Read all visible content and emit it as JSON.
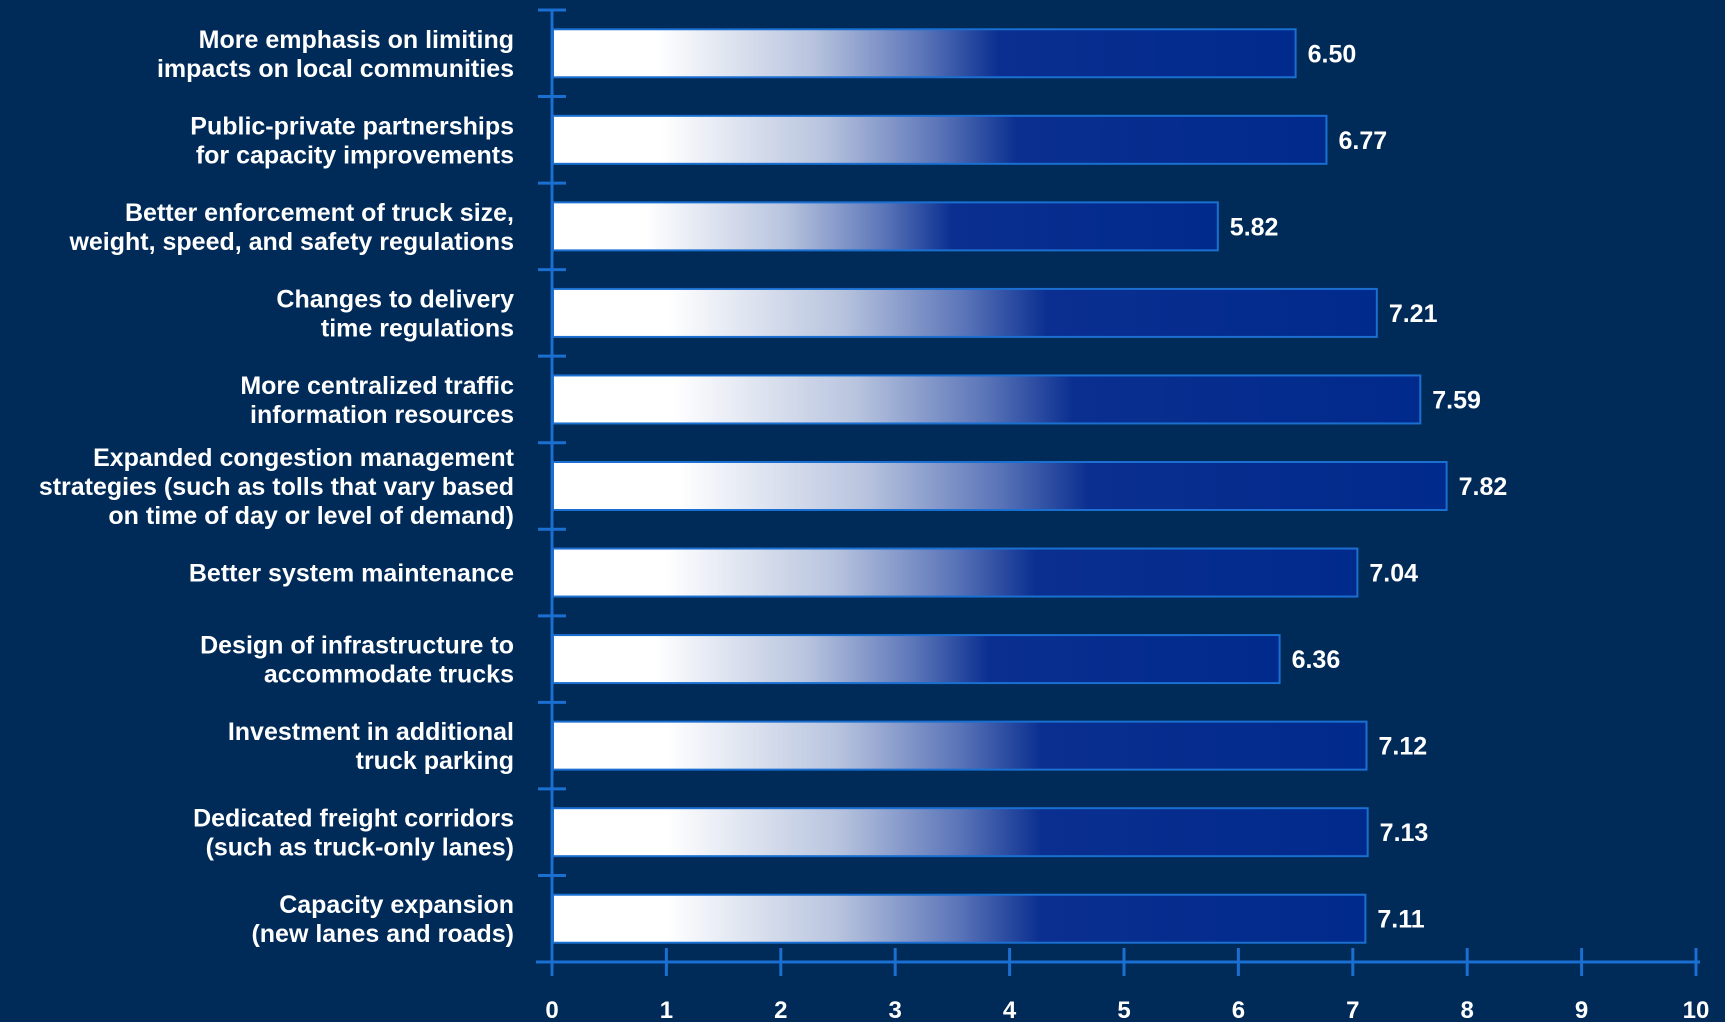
{
  "chart_data": {
    "type": "bar",
    "orientation": "horizontal",
    "categories": [
      "More emphasis on limiting\nimpacts on local communities",
      "Public-private partnerships\nfor capacity improvements",
      "Better enforcement of truck size,\nweight, speed, and safety regulations",
      "Changes to delivery\ntime regulations",
      "More centralized traffic\ninformation resources",
      "Expanded congestion management\nstrategies (such as tolls that vary based\non time of day or level of demand)",
      "Better system maintenance",
      "Design of infrastructure to\naccommodate trucks",
      "Investment in additional\ntruck parking",
      "Dedicated freight corridors\n(such as truck-only lanes)",
      "Capacity expansion\n(new lanes and roads)"
    ],
    "values": [
      6.5,
      6.77,
      5.82,
      7.21,
      7.59,
      7.82,
      7.04,
      6.36,
      7.12,
      7.13,
      7.11
    ],
    "value_labels": [
      "6.50",
      "6.77",
      "5.82",
      "7.21",
      "7.59",
      "7.82",
      "7.04",
      "6.36",
      "7.12",
      "7.13",
      "7.11"
    ],
    "xlim": [
      0,
      10
    ],
    "xticks": [
      "0",
      "1",
      "2",
      "3",
      "4",
      "5",
      "6",
      "7",
      "8",
      "9",
      "10"
    ],
    "title": "",
    "xlabel": "",
    "ylabel": "",
    "grid": false,
    "legend": "none",
    "colors": {
      "background": "#002a57",
      "bar_start": "#ffffff",
      "bar_end": "#002a8c",
      "bar_border": "#1a6fd0",
      "axis": "#1a6fd0",
      "text": "#ffffff"
    }
  }
}
